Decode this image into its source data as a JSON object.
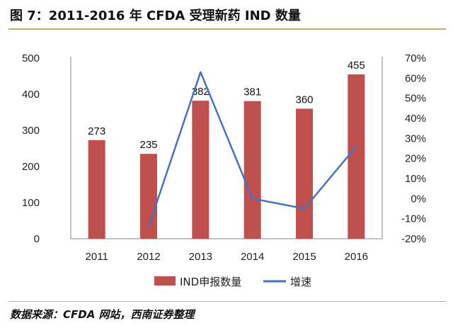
{
  "title": "图 7：2011-2016 年 CFDA 受理新药 IND 数量",
  "source": "数据来源：CFDA 网站，西南证券整理",
  "chart_data": {
    "type": "bar",
    "categories": [
      "2011",
      "2012",
      "2013",
      "2014",
      "2015",
      "2016"
    ],
    "series": [
      {
        "name": "IND申报数量",
        "kind": "bar",
        "axis": "left",
        "color": "#c0504d",
        "values": [
          273,
          235,
          382,
          381,
          360,
          455
        ]
      },
      {
        "name": "增速",
        "kind": "line",
        "axis": "right",
        "color": "#4472c4",
        "values": [
          null,
          -14,
          63,
          0,
          -5,
          26
        ]
      }
    ],
    "y_left": {
      "min": 0,
      "max": 500,
      "ticks": [
        "0",
        "100",
        "200",
        "300",
        "400",
        "500"
      ]
    },
    "y_right": {
      "min": -20,
      "max": 70,
      "ticks": [
        "-20%",
        "-10%",
        "0%",
        "10%",
        "20%",
        "30%",
        "40%",
        "50%",
        "60%",
        "70%"
      ]
    },
    "data_labels": [
      "273",
      "235",
      "382",
      "381",
      "360",
      "455"
    ],
    "grid": false,
    "legend": "bottom"
  }
}
